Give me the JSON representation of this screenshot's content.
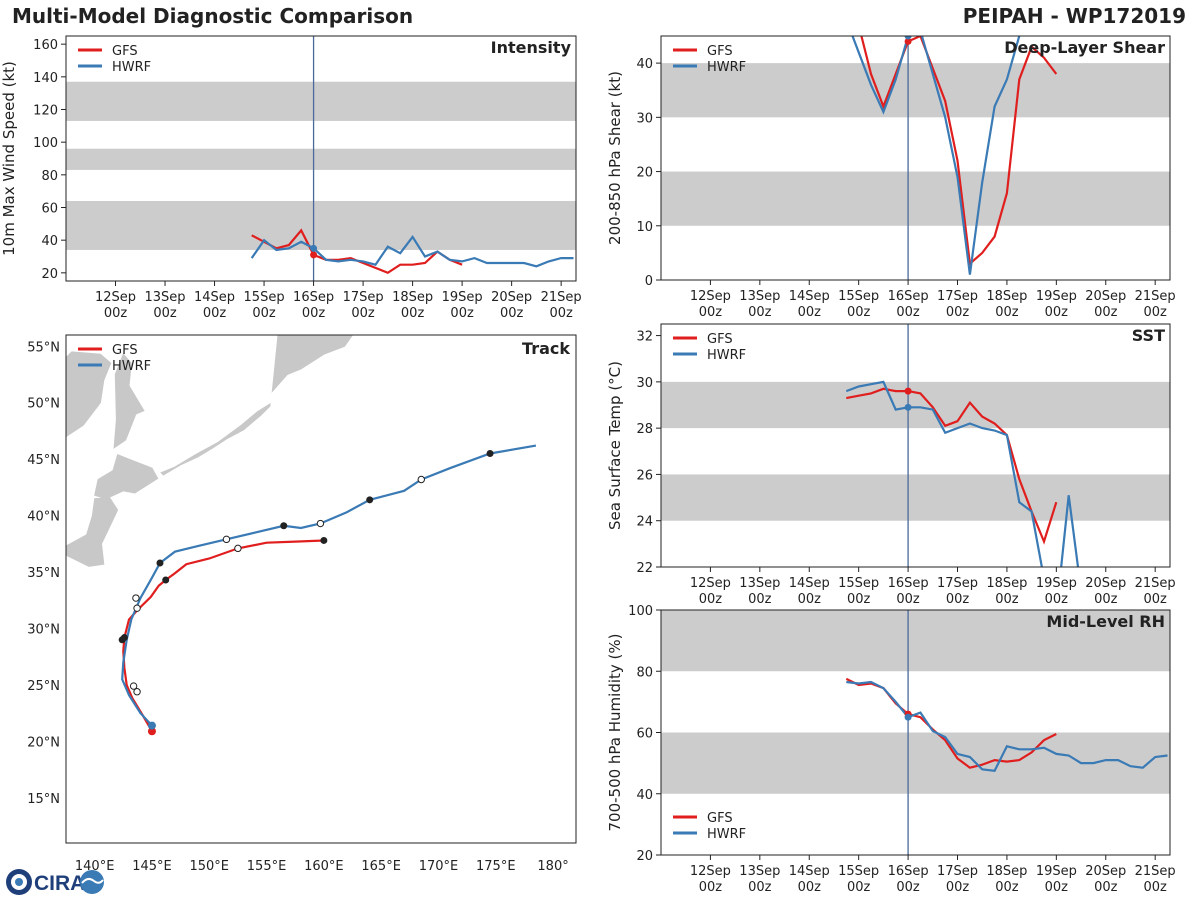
{
  "header": {
    "title": "Multi-Model Diagnostic Comparison",
    "storm": "PEIPAH - WP172019"
  },
  "colors": {
    "gfs": "#e01e1e",
    "hwrf": "#3a7ab5",
    "band": "#cccccc",
    "land": "#c8c8c8",
    "now_line": "#4a6a9a"
  },
  "logo": {
    "text": "CIRA",
    "icon": "cira-logo-icon"
  },
  "time_axis": {
    "ticks": [
      "12Sep\n00z",
      "13Sep\n00z",
      "14Sep\n00z",
      "15Sep\n00z",
      "16Sep\n00z",
      "17Sep\n00z",
      "18Sep\n00z",
      "19Sep\n00z",
      "20Sep\n00z",
      "21Sep\n00z"
    ],
    "range_days": [
      11,
      21.3
    ],
    "now_day": 16
  },
  "chart_data": [
    {
      "id": "intensity",
      "type": "line",
      "title": "Intensity",
      "ylabel": "10m Max Wind Speed (kt)",
      "ylim": [
        15,
        165
      ],
      "yticks": [
        20,
        40,
        60,
        80,
        100,
        120,
        140,
        160
      ],
      "bands": [
        [
          34,
          64
        ],
        [
          83,
          96
        ],
        [
          113,
          137
        ]
      ],
      "series": [
        {
          "name": "GFS",
          "x": [
            14.75,
            15,
            15.25,
            15.5,
            15.75,
            16,
            16.25,
            16.5,
            16.75,
            17,
            17.25,
            17.5,
            17.75,
            18,
            18.25,
            18.5,
            18.75,
            19
          ],
          "y": [
            43,
            39,
            35,
            37,
            46,
            31,
            28,
            28,
            29,
            26,
            23,
            20,
            25,
            25,
            26,
            33,
            28,
            25
          ]
        },
        {
          "name": "HWRF",
          "x": [
            14.75,
            15,
            15.25,
            15.5,
            15.75,
            16,
            16.25,
            16.5,
            16.75,
            17,
            17.25,
            17.5,
            17.75,
            18,
            18.25,
            18.5,
            18.75,
            19,
            19.25,
            19.5,
            19.75,
            20,
            20.25,
            20.5,
            20.75,
            21,
            21.25
          ],
          "y": [
            29,
            40,
            34,
            35,
            39,
            35,
            28,
            27,
            28,
            27,
            25,
            36,
            32,
            42,
            30,
            33,
            28,
            27,
            29,
            26,
            26,
            26,
            26,
            24,
            27,
            29,
            29
          ]
        }
      ],
      "markers": {
        "GFS": [
          16,
          31
        ],
        "HWRF": [
          16,
          35
        ]
      },
      "legend": "top-left"
    },
    {
      "id": "shear",
      "type": "line",
      "title": "Deep-Layer Shear",
      "ylabel": "200-850 hPa Shear (kt)",
      "ylim": [
        0,
        45
      ],
      "yticks": [
        0,
        10,
        20,
        30,
        40
      ],
      "bands": [
        [
          10,
          20
        ],
        [
          30,
          40
        ]
      ],
      "series": [
        {
          "name": "GFS",
          "x": [
            14.75,
            15,
            15.25,
            15.5,
            15.75,
            16,
            16.25,
            16.5,
            16.75,
            17,
            17.25,
            17.5,
            17.75,
            18,
            18.25,
            18.5,
            18.75,
            19
          ],
          "y": [
            57,
            47,
            38,
            32,
            38,
            44,
            45,
            39,
            33,
            22,
            3,
            5,
            8,
            16,
            37,
            43,
            41,
            38
          ]
        },
        {
          "name": "HWRF",
          "x": [
            14.75,
            15,
            15.25,
            15.5,
            15.75,
            16,
            16.25,
            16.5,
            16.75,
            17,
            17.25,
            17.5,
            17.75,
            18,
            18.25,
            18.5
          ],
          "y": [
            48,
            42,
            36,
            31,
            37,
            45,
            46,
            38,
            30,
            19,
            1,
            18,
            32,
            37,
            45,
            51
          ]
        }
      ],
      "markers": {
        "GFS": [
          16,
          44
        ],
        "HWRF": [
          16,
          45
        ]
      },
      "legend": "top-left"
    },
    {
      "id": "sst",
      "type": "line",
      "title": "SST",
      "ylabel": "Sea Surface Temp (°C)",
      "ylim": [
        22,
        32.5
      ],
      "yticks": [
        22,
        24,
        26,
        28,
        30,
        32
      ],
      "bands": [
        [
          24,
          26
        ],
        [
          28,
          30
        ]
      ],
      "series": [
        {
          "name": "GFS",
          "x": [
            14.75,
            15,
            15.25,
            15.5,
            15.75,
            16,
            16.25,
            16.5,
            16.75,
            17,
            17.25,
            17.5,
            17.75,
            18,
            18.25,
            18.5,
            18.75,
            19
          ],
          "y": [
            29.3,
            29.4,
            29.5,
            29.7,
            29.6,
            29.6,
            29.5,
            28.9,
            28.1,
            28.3,
            29.1,
            28.5,
            28.2,
            27.7,
            25.8,
            24.4,
            23.1,
            24.8
          ]
        },
        {
          "name": "HWRF",
          "x": [
            14.75,
            15,
            15.25,
            15.5,
            15.75,
            16,
            16.25,
            16.5,
            16.75,
            17,
            17.25,
            17.5,
            17.75,
            18,
            18.25,
            18.5,
            18.75,
            19,
            19.25,
            19.5,
            19.75
          ],
          "y": [
            29.6,
            29.8,
            29.9,
            30.0,
            28.8,
            28.9,
            28.9,
            28.8,
            27.8,
            28.0,
            28.2,
            28.0,
            27.9,
            27.7,
            24.8,
            24.4,
            21.5,
            20.0,
            25.1,
            21.0,
            18.0
          ]
        }
      ],
      "markers": {
        "GFS": [
          16,
          29.6
        ],
        "HWRF": [
          16,
          28.9
        ]
      },
      "legend": "top-left"
    },
    {
      "id": "rh",
      "type": "line",
      "title": "Mid-Level RH",
      "ylabel": "700-500 hPa Humidity (%)",
      "ylim": [
        20,
        100
      ],
      "yticks": [
        20,
        40,
        60,
        80,
        100
      ],
      "bands": [
        [
          40,
          60
        ],
        [
          80,
          100
        ]
      ],
      "series": [
        {
          "name": "GFS",
          "x": [
            14.75,
            15,
            15.25,
            15.5,
            15.75,
            16,
            16.25,
            16.5,
            16.75,
            17,
            17.25,
            17.5,
            17.75,
            18,
            18.25,
            18.5,
            18.75,
            19
          ],
          "y": [
            77.5,
            75.5,
            76,
            74.5,
            69.5,
            66,
            65,
            61,
            57.5,
            51.5,
            48.5,
            49.5,
            51,
            50.5,
            51,
            53.5,
            57.5,
            59.5
          ]
        },
        {
          "name": "HWRF",
          "x": [
            14.75,
            15,
            15.25,
            15.5,
            15.75,
            16,
            16.25,
            16.5,
            16.75,
            17,
            17.25,
            17.5,
            17.75,
            18,
            18.25,
            18.5,
            18.75,
            19,
            19.25,
            19.5,
            19.75,
            20,
            20.25,
            20.5,
            20.75,
            21,
            21.25
          ],
          "y": [
            76.5,
            76,
            76.5,
            74.5,
            70,
            65,
            66.5,
            60.5,
            58.5,
            53,
            52,
            48,
            47.5,
            55.5,
            54.5,
            54.5,
            55,
            53,
            52.5,
            50,
            50,
            51,
            51,
            49,
            48.5,
            52,
            52.5
          ]
        }
      ],
      "markers": {
        "GFS": [
          16,
          66
        ],
        "HWRF": [
          16,
          65
        ]
      },
      "legend": "bottom-left"
    },
    {
      "id": "track",
      "type": "line",
      "title": "Track",
      "xlim": [
        137.5,
        182
      ],
      "ylim": [
        11,
        56
      ],
      "lon_ticks": [
        "140°E",
        "145°E",
        "150°E",
        "155°E",
        "160°E",
        "165°E",
        "170°E",
        "175°E",
        "180°"
      ],
      "lon_values": [
        140,
        145,
        150,
        155,
        160,
        165,
        170,
        175,
        180
      ],
      "lat_ticks": [
        "15°N",
        "20°N",
        "25°N",
        "30°N",
        "35°N",
        "40°N",
        "45°N",
        "50°N",
        "55°N"
      ],
      "lat_values": [
        15,
        20,
        25,
        30,
        35,
        40,
        45,
        50,
        55
      ],
      "series": [
        {
          "name": "GFS",
          "lon": [
            145,
            144.2,
            143.3,
            142.8,
            142.6,
            142.5,
            142.6,
            143,
            143.7,
            144.9,
            145.6,
            146.2,
            147,
            148,
            150,
            152.5,
            155,
            157.5,
            160
          ],
          "lat": [
            20.9,
            22.3,
            23.8,
            25,
            26.5,
            28,
            29.2,
            30.8,
            31.6,
            32.8,
            33.8,
            34.3,
            34.9,
            35.7,
            36.2,
            37.1,
            37.6,
            37.7,
            37.8
          ],
          "filled": [
            [
              145,
              20.9
            ],
            [
              142.6,
              29.2
            ],
            [
              146.2,
              34.3
            ],
            [
              160,
              37.8
            ]
          ],
          "open": [
            [
              143.7,
              24.4
            ],
            [
              143.7,
              31.8
            ],
            [
              152.5,
              37.1
            ]
          ]
        },
        {
          "name": "HWRF",
          "lon": [
            145,
            144,
            143,
            142.4,
            142.5,
            142.8,
            143.2,
            144,
            145,
            145.7,
            147,
            149,
            151.5,
            154,
            156.5,
            158,
            159.7,
            162,
            164,
            167,
            168.5,
            171,
            174.5,
            178.5
          ],
          "lat": [
            21.4,
            22.5,
            24.1,
            25.5,
            27,
            29,
            30.8,
            32.7,
            34.5,
            35.8,
            36.8,
            37.3,
            37.9,
            38.5,
            39.1,
            38.9,
            39.3,
            40.3,
            41.4,
            42.2,
            43.2,
            44.2,
            45.5,
            46.2
          ],
          "filled": [
            [
              145,
              21.4
            ],
            [
              142.4,
              29
            ],
            [
              145.7,
              35.8
            ],
            [
              156.5,
              39.1
            ],
            [
              164,
              41.4
            ],
            [
              174.5,
              45.5
            ]
          ],
          "open": [
            [
              143.4,
              24.9
            ],
            [
              143.6,
              32.7
            ],
            [
              151.5,
              37.9
            ],
            [
              159.7,
              39.3
            ],
            [
              168.5,
              43.2
            ]
          ]
        }
      ],
      "legend": "top-left"
    }
  ]
}
